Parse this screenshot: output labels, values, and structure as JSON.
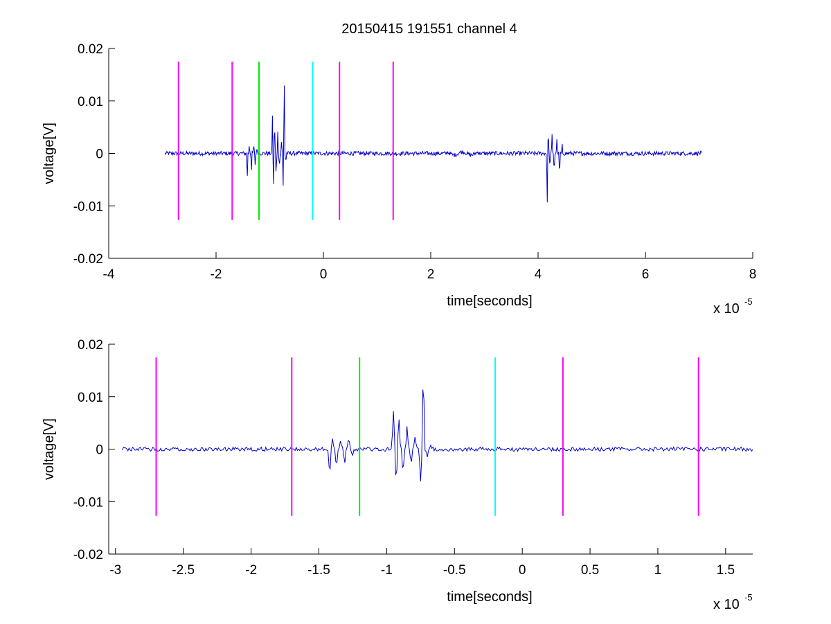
{
  "figure": {
    "title": "20150415 191551 channel 4"
  },
  "chart_data": [
    {
      "type": "line",
      "title": "20150415 191551 channel 4",
      "xlabel": "time[seconds]",
      "ylabel": "voltage[V]",
      "x_exponent_label": "x 10",
      "x_exponent_power": "-5",
      "xlim": [
        -4,
        8
      ],
      "ylim": [
        -0.02,
        0.02
      ],
      "xticks": [
        "-4",
        "-2",
        "0",
        "2",
        "4",
        "6",
        "8"
      ],
      "xtick_values": [
        -4,
        -2,
        0,
        2,
        4,
        6,
        8
      ],
      "yticks": [
        "-0.02",
        "-0.01",
        "0",
        "0.01",
        "0.02"
      ],
      "ytick_values": [
        -0.02,
        -0.01,
        0,
        0.01,
        0.02
      ],
      "grid": false,
      "markers": [
        {
          "x": -2.7,
          "color": "#ff00ff",
          "ymin": -0.0127,
          "ymax": 0.0175
        },
        {
          "x": -1.7,
          "color": "#ff00ff",
          "ymin": -0.0127,
          "ymax": 0.0175
        },
        {
          "x": -1.2,
          "color": "#00ee00",
          "ymin": -0.0127,
          "ymax": 0.0175
        },
        {
          "x": -0.2,
          "color": "#00ffff",
          "ymin": -0.0127,
          "ymax": 0.0175
        },
        {
          "x": 0.3,
          "color": "#ff00ff",
          "ymin": -0.0127,
          "ymax": 0.0175
        },
        {
          "x": 1.3,
          "color": "#ff00ff",
          "ymin": -0.0127,
          "ymax": 0.0175
        }
      ],
      "series": [
        {
          "color": "#0000cc",
          "x_range": [
            -2.95,
            7.05
          ],
          "noise_amplitude": 0.0004,
          "bursts": [
            {
              "t": -1.42,
              "v": -0.0057
            },
            {
              "t": -1.38,
              "v": 0.002
            },
            {
              "t": -1.34,
              "v": -0.0035
            },
            {
              "t": -1.3,
              "v": 0.0018
            },
            {
              "t": -1.27,
              "v": -0.0025
            },
            {
              "t": -1.24,
              "v": 0.0012
            },
            {
              "t": -0.95,
              "v": 0.0074
            },
            {
              "t": -0.93,
              "v": -0.007
            },
            {
              "t": -0.91,
              "v": 0.0066
            },
            {
              "t": -0.88,
              "v": -0.005
            },
            {
              "t": -0.85,
              "v": 0.004
            },
            {
              "t": -0.82,
              "v": -0.003
            },
            {
              "t": -0.78,
              "v": 0.003
            },
            {
              "t": -0.75,
              "v": -0.0063
            },
            {
              "t": -0.73,
              "v": 0.0158
            },
            {
              "t": -0.7,
              "v": -0.002
            },
            {
              "t": 4.17,
              "v": -0.0115
            },
            {
              "t": 4.19,
              "v": 0.0049
            },
            {
              "t": 4.22,
              "v": -0.003
            },
            {
              "t": 4.26,
              "v": 0.0038
            },
            {
              "t": 4.3,
              "v": -0.004
            },
            {
              "t": 4.35,
              "v": 0.003
            },
            {
              "t": 4.4,
              "v": -0.0053
            },
            {
              "t": 4.45,
              "v": 0.0015
            }
          ]
        }
      ]
    },
    {
      "type": "line",
      "title": "",
      "xlabel": "time[seconds]",
      "ylabel": "voltage[V]",
      "x_exponent_label": "x 10",
      "x_exponent_power": "-5",
      "xlim": [
        -3.05,
        1.7
      ],
      "ylim": [
        -0.02,
        0.02
      ],
      "xticks": [
        "-3",
        "-2.5",
        "-2",
        "-1.5",
        "-1",
        "-0.5",
        "0",
        "0.5",
        "1",
        "1.5"
      ],
      "xtick_values": [
        -3,
        -2.5,
        -2,
        -1.5,
        -1,
        -0.5,
        0,
        0.5,
        1,
        1.5
      ],
      "yticks": [
        "-0.02",
        "-0.01",
        "0",
        "0.01",
        "0.02"
      ],
      "ytick_values": [
        -0.02,
        -0.01,
        0,
        0.01,
        0.02
      ],
      "grid": false,
      "markers": [
        {
          "x": -2.7,
          "color": "#ff00ff",
          "ymin": -0.0127,
          "ymax": 0.0175
        },
        {
          "x": -1.7,
          "color": "#ff00ff",
          "ymin": -0.0127,
          "ymax": 0.0175
        },
        {
          "x": -1.2,
          "color": "#00ee00",
          "ymin": -0.0127,
          "ymax": 0.0175
        },
        {
          "x": -0.2,
          "color": "#00ffff",
          "ymin": -0.0127,
          "ymax": 0.0175
        },
        {
          "x": 0.3,
          "color": "#ff00ff",
          "ymin": -0.0127,
          "ymax": 0.0175
        },
        {
          "x": 1.3,
          "color": "#ff00ff",
          "ymin": -0.0127,
          "ymax": 0.0175
        }
      ],
      "series": [
        {
          "color": "#0000cc",
          "x_range": [
            -2.95,
            1.7
          ],
          "noise_amplitude": 0.0004,
          "bursts": [
            {
              "t": -1.42,
              "v": -0.0057
            },
            {
              "t": -1.4,
              "v": 0.002
            },
            {
              "t": -1.37,
              "v": -0.0035
            },
            {
              "t": -1.34,
              "v": 0.0018
            },
            {
              "t": -1.31,
              "v": -0.003
            },
            {
              "t": -1.28,
              "v": 0.002
            },
            {
              "t": -1.25,
              "v": -0.0015
            },
            {
              "t": -0.95,
              "v": 0.0074
            },
            {
              "t": -0.93,
              "v": -0.007
            },
            {
              "t": -0.91,
              "v": 0.0066
            },
            {
              "t": -0.88,
              "v": -0.005
            },
            {
              "t": -0.85,
              "v": 0.004
            },
            {
              "t": -0.82,
              "v": -0.003
            },
            {
              "t": -0.79,
              "v": 0.003
            },
            {
              "t": -0.75,
              "v": -0.0063
            },
            {
              "t": -0.73,
              "v": 0.0158
            },
            {
              "t": -0.7,
              "v": -0.0015
            },
            {
              "t": -0.68,
              "v": 0.0008
            }
          ]
        }
      ]
    }
  ]
}
